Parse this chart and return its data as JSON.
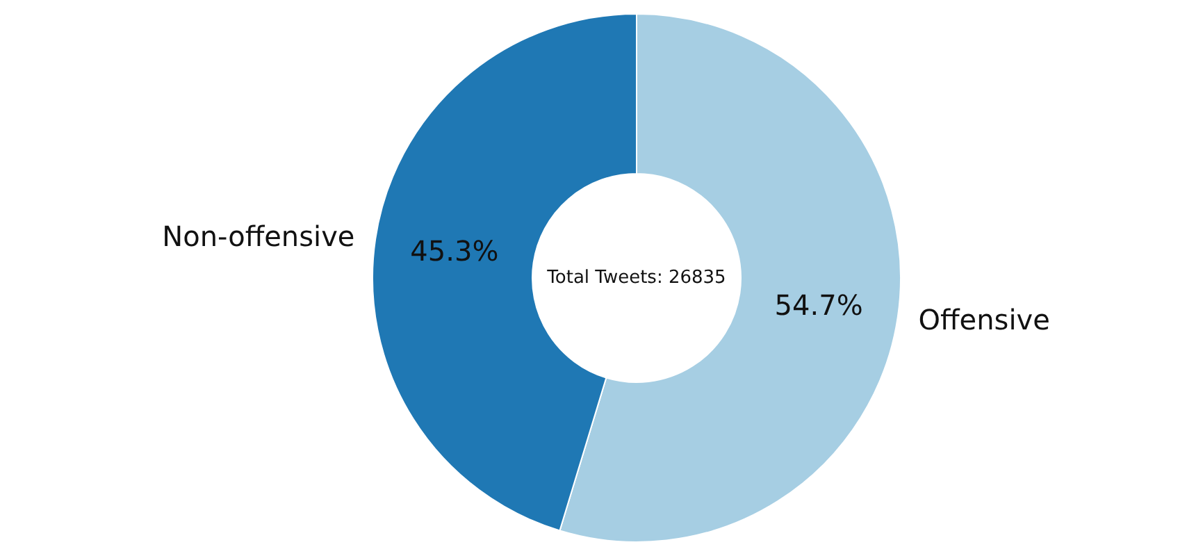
{
  "chart_data": {
    "type": "donut",
    "categories": [
      "Offensive",
      "Non-offensive"
    ],
    "values": [
      54.7,
      45.3
    ],
    "value_labels": [
      "54.7%",
      "45.3%"
    ],
    "colors": [
      "#a6cee3",
      "#1f78b4"
    ],
    "annotations": [
      "Total Tweets: 26835"
    ],
    "legend": false
  }
}
